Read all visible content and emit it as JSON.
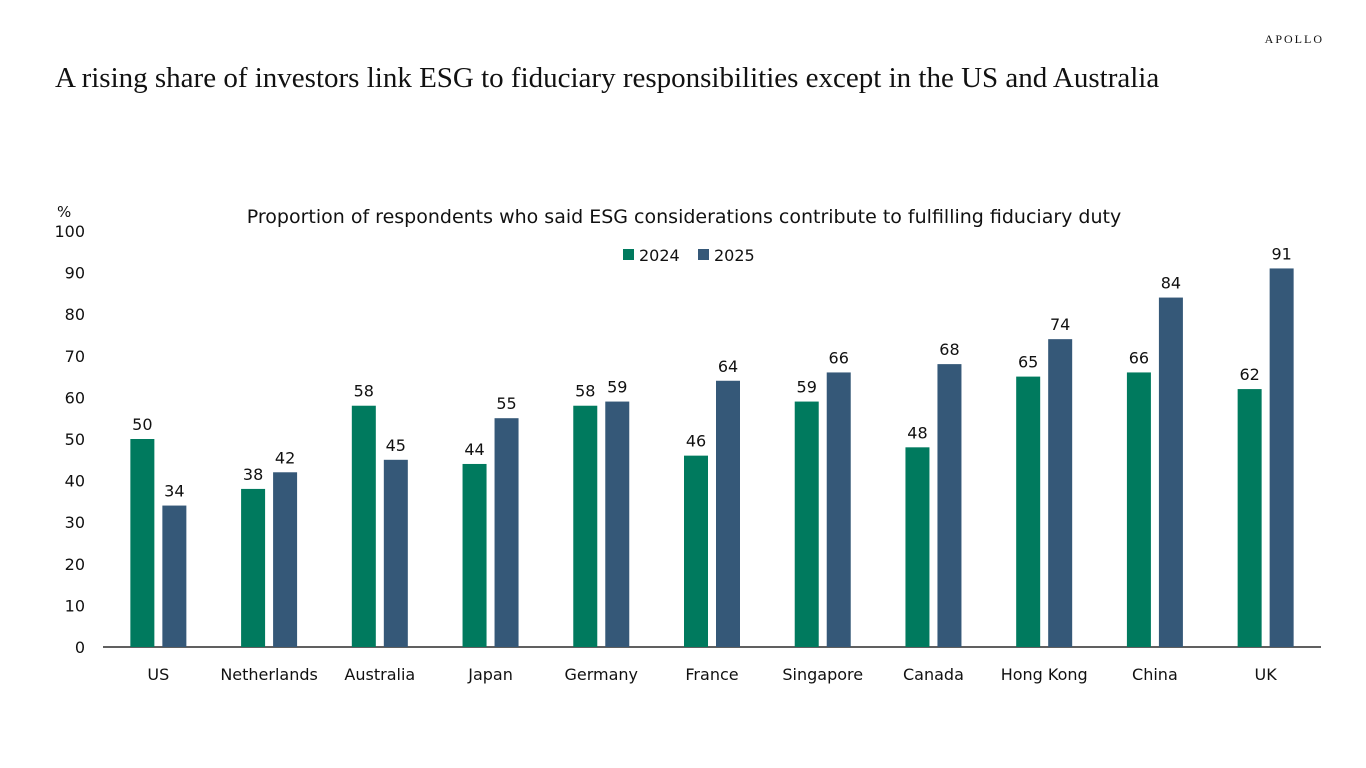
{
  "brand": "APOLLO",
  "title": "A rising share of investors link ESG to fiduciary responsibilities except in the US and Australia",
  "chart_data": {
    "type": "bar",
    "title": "Proportion of respondents who said ESG considerations contribute to fulfilling fiduciary duty",
    "ylabel": "%",
    "xlabel": "",
    "ylim": [
      0,
      100
    ],
    "yticks": [
      0,
      10,
      20,
      30,
      40,
      50,
      60,
      70,
      80,
      90,
      100
    ],
    "grid": false,
    "legend_position": "top-center",
    "categories": [
      "US",
      "Netherlands",
      "Australia",
      "Japan",
      "Germany",
      "France",
      "Singapore",
      "Canada",
      "Hong Kong",
      "China",
      "UK"
    ],
    "series": [
      {
        "name": "2024",
        "color": "#007A5E",
        "values": [
          50,
          38,
          58,
          44,
          58,
          46,
          59,
          48,
          65,
          66,
          62
        ]
      },
      {
        "name": "2025",
        "color": "#355878",
        "values": [
          34,
          42,
          45,
          55,
          59,
          64,
          66,
          68,
          74,
          84,
          91
        ]
      }
    ],
    "data_labels": true
  }
}
